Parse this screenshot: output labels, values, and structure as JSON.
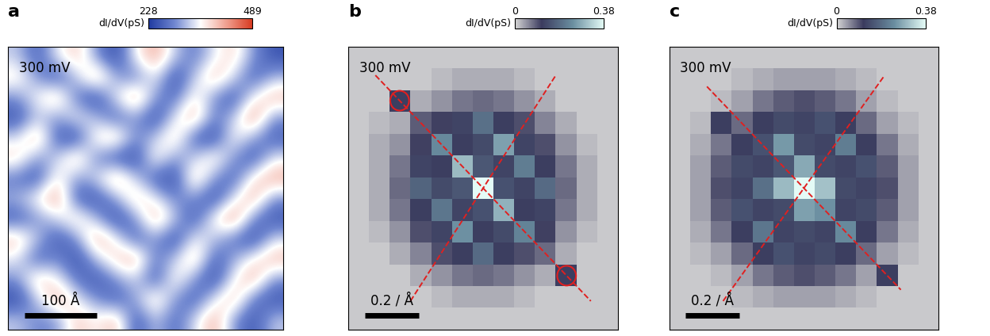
{
  "chart_data": [
    {
      "type": "heatmap",
      "panel": "a",
      "label": "300 mV",
      "tick_labels": false,
      "extent": [
        0,
        380
      ],
      "scale_bar": {
        "length": 100,
        "label": "100 Å"
      },
      "colorbar": {
        "label": "dI/dV(pS)",
        "range": [
          228,
          489
        ],
        "ticks": [
          228,
          489
        ]
      },
      "cells": [
        [
          330,
          260,
          350,
          400,
          300,
          240,
          360,
          420,
          330,
          280,
          350,
          390,
          300,
          250
        ],
        [
          380,
          300,
          250,
          330,
          420,
          310,
          280,
          360,
          240,
          330,
          410,
          340,
          260,
          320
        ],
        [
          300,
          360,
          410,
          280,
          240,
          350,
          430,
          300,
          270,
          380,
          300,
          250,
          360,
          410
        ],
        [
          250,
          330,
          300,
          360,
          320,
          260,
          310,
          240,
          350,
          420,
          280,
          330,
          440,
          300
        ],
        [
          340,
          420,
          260,
          240,
          380,
          410,
          290,
          330,
          400,
          260,
          240,
          370,
          310,
          260
        ],
        [
          390,
          300,
          330,
          410,
          290,
          250,
          240,
          380,
          300,
          330,
          390,
          300,
          250,
          350
        ],
        [
          280,
          250,
          380,
          300,
          340,
          420,
          330,
          260,
          240,
          410,
          300,
          260,
          380,
          420
        ],
        [
          320,
          370,
          430,
          260,
          250,
          310,
          400,
          350,
          290,
          300,
          240,
          350,
          420,
          300
        ],
        [
          260,
          300,
          340,
          390,
          320,
          240,
          300,
          420,
          330,
          250,
          370,
          440,
          290,
          250
        ],
        [
          400,
          330,
          250,
          300,
          420,
          360,
          260,
          310,
          240,
          360,
          330,
          280,
          240,
          340
        ],
        [
          350,
          260,
          300,
          240,
          330,
          390,
          420,
          280,
          330,
          410,
          260,
          310,
          370,
          410
        ],
        [
          300,
          400,
          360,
          280,
          250,
          300,
          340,
          250,
          380,
          300,
          240,
          360,
          420,
          300
        ],
        [
          240,
          330,
          420,
          350,
          300,
          260,
          310,
          400,
          300,
          260,
          350,
          410,
          280,
          250
        ],
        [
          330,
          290,
          300,
          400,
          360,
          410,
          250,
          330,
          270,
          340,
          420,
          300,
          250,
          330
        ]
      ]
    },
    {
      "type": "heatmap",
      "panel": "b",
      "label": "300 mV",
      "tick_labels": false,
      "extent": [
        -0.5,
        0.5
      ],
      "scale_bar": {
        "length": 0.2,
        "label": "0.2 / Å"
      },
      "colorbar": {
        "label": "dI/dV(pS)",
        "range": [
          0,
          0.38
        ],
        "ticks": [
          0,
          0.38
        ]
      },
      "lines": [
        {
          "from": [
            -0.4,
            0.4
          ],
          "to": [
            0.4,
            -0.4
          ]
        },
        {
          "from": [
            -0.27,
            -0.4
          ],
          "to": [
            0.27,
            0.4
          ]
        }
      ],
      "circles": [
        [
          -0.31,
          0.31
        ],
        [
          0.31,
          -0.31
        ]
      ],
      "cells": [
        [
          0.01,
          0.01,
          0.01,
          0.01,
          0.01,
          0.01,
          0.01,
          0.01,
          0.01,
          0.01,
          0.01,
          0.01,
          0.01
        ],
        [
          0.01,
          0.01,
          0.01,
          0.01,
          0.02,
          0.03,
          0.03,
          0.03,
          0.02,
          0.01,
          0.01,
          0.01,
          0.01
        ],
        [
          0.01,
          0.01,
          0.12,
          0.03,
          0.05,
          0.07,
          0.08,
          0.07,
          0.05,
          0.03,
          0.01,
          0.01,
          0.01
        ],
        [
          0.01,
          0.02,
          0.03,
          0.09,
          0.11,
          0.13,
          0.2,
          0.12,
          0.1,
          0.06,
          0.03,
          0.01,
          0.01
        ],
        [
          0.01,
          0.03,
          0.05,
          0.11,
          0.24,
          0.12,
          0.14,
          0.27,
          0.13,
          0.1,
          0.05,
          0.02,
          0.01
        ],
        [
          0.01,
          0.03,
          0.07,
          0.13,
          0.12,
          0.3,
          0.16,
          0.13,
          0.22,
          0.12,
          0.07,
          0.03,
          0.01
        ],
        [
          0.01,
          0.03,
          0.08,
          0.18,
          0.14,
          0.16,
          0.38,
          0.15,
          0.13,
          0.19,
          0.08,
          0.03,
          0.01
        ],
        [
          0.01,
          0.03,
          0.07,
          0.12,
          0.21,
          0.13,
          0.15,
          0.29,
          0.12,
          0.13,
          0.07,
          0.03,
          0.01
        ],
        [
          0.01,
          0.02,
          0.05,
          0.1,
          0.13,
          0.25,
          0.12,
          0.14,
          0.23,
          0.11,
          0.05,
          0.02,
          0.01
        ],
        [
          0.01,
          0.01,
          0.03,
          0.06,
          0.1,
          0.12,
          0.19,
          0.12,
          0.1,
          0.08,
          0.03,
          0.01,
          0.01
        ],
        [
          0.01,
          0.01,
          0.01,
          0.03,
          0.05,
          0.07,
          0.08,
          0.07,
          0.05,
          0.03,
          0.12,
          0.01,
          0.01
        ],
        [
          0.01,
          0.01,
          0.01,
          0.01,
          0.02,
          0.03,
          0.03,
          0.03,
          0.02,
          0.01,
          0.01,
          0.01,
          0.01
        ],
        [
          0.01,
          0.01,
          0.01,
          0.01,
          0.01,
          0.01,
          0.01,
          0.01,
          0.01,
          0.01,
          0.01,
          0.01,
          0.01
        ]
      ]
    },
    {
      "type": "heatmap",
      "panel": "c",
      "label": "300 mV",
      "tick_labels": false,
      "extent": [
        -0.5,
        0.5
      ],
      "scale_bar": {
        "length": 0.2,
        "label": "0.2 / Å"
      },
      "colorbar": {
        "label": "dI/dV(pS)",
        "range": [
          0,
          0.38
        ],
        "ticks": [
          0,
          0.38
        ]
      },
      "lines": [
        {
          "from": [
            -0.36,
            0.36
          ],
          "to": [
            0.36,
            -0.36
          ]
        },
        {
          "from": [
            -0.3,
            -0.4
          ],
          "to": [
            0.3,
            0.4
          ]
        }
      ],
      "cells": [
        [
          0.01,
          0.01,
          0.01,
          0.01,
          0.01,
          0.01,
          0.01,
          0.01,
          0.01,
          0.01,
          0.01,
          0.01,
          0.01
        ],
        [
          0.01,
          0.01,
          0.01,
          0.02,
          0.03,
          0.04,
          0.04,
          0.04,
          0.03,
          0.02,
          0.01,
          0.01,
          0.01
        ],
        [
          0.01,
          0.01,
          0.02,
          0.04,
          0.07,
          0.09,
          0.1,
          0.09,
          0.07,
          0.04,
          0.02,
          0.01,
          0.01
        ],
        [
          0.01,
          0.02,
          0.12,
          0.08,
          0.12,
          0.14,
          0.13,
          0.15,
          0.12,
          0.08,
          0.04,
          0.02,
          0.01
        ],
        [
          0.01,
          0.03,
          0.07,
          0.12,
          0.15,
          0.26,
          0.14,
          0.13,
          0.22,
          0.12,
          0.07,
          0.03,
          0.01
        ],
        [
          0.01,
          0.04,
          0.09,
          0.14,
          0.13,
          0.16,
          0.28,
          0.14,
          0.13,
          0.15,
          0.09,
          0.04,
          0.01
        ],
        [
          0.01,
          0.04,
          0.1,
          0.13,
          0.2,
          0.3,
          0.38,
          0.31,
          0.14,
          0.13,
          0.1,
          0.04,
          0.01
        ],
        [
          0.01,
          0.04,
          0.09,
          0.15,
          0.13,
          0.14,
          0.27,
          0.25,
          0.13,
          0.14,
          0.09,
          0.04,
          0.01
        ],
        [
          0.01,
          0.03,
          0.07,
          0.12,
          0.21,
          0.13,
          0.14,
          0.13,
          0.24,
          0.12,
          0.07,
          0.03,
          0.01
        ],
        [
          0.01,
          0.02,
          0.04,
          0.08,
          0.12,
          0.15,
          0.13,
          0.14,
          0.12,
          0.08,
          0.04,
          0.02,
          0.01
        ],
        [
          0.01,
          0.01,
          0.02,
          0.04,
          0.07,
          0.09,
          0.1,
          0.09,
          0.07,
          0.04,
          0.12,
          0.01,
          0.01
        ],
        [
          0.01,
          0.01,
          0.01,
          0.02,
          0.03,
          0.04,
          0.04,
          0.04,
          0.03,
          0.02,
          0.01,
          0.01,
          0.01
        ],
        [
          0.01,
          0.01,
          0.01,
          0.01,
          0.01,
          0.01,
          0.01,
          0.01,
          0.01,
          0.01,
          0.01,
          0.01,
          0.01
        ]
      ]
    }
  ]
}
